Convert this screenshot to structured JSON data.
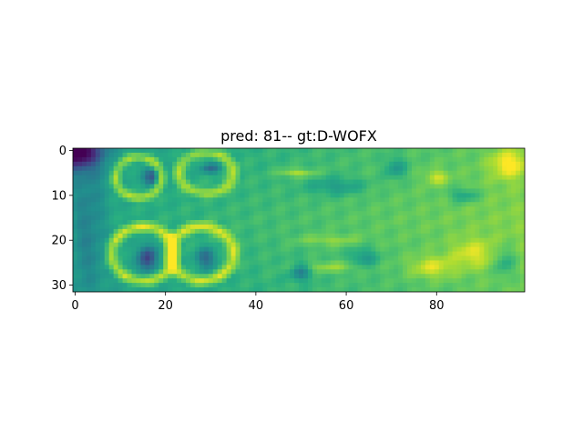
{
  "chart_data": {
    "type": "heatmap",
    "title": "pred: 81-- gt:D-WOFX",
    "xlabel": "",
    "ylabel": "",
    "xlim": [
      -0.5,
      99.5
    ],
    "ylim": [
      31.5,
      -0.5
    ],
    "xticks": [
      0,
      20,
      40,
      60,
      80
    ],
    "yticks": [
      0,
      10,
      20,
      30
    ],
    "colormap": "viridis",
    "grid": false,
    "image_rows": 32,
    "image_cols": 100
  }
}
